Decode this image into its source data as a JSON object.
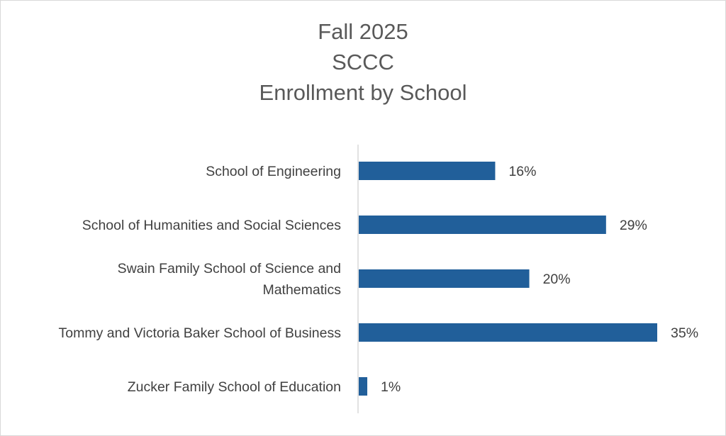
{
  "chart_data": {
    "type": "bar",
    "orientation": "horizontal",
    "title_lines": [
      "Fall 2025",
      "SCCC",
      "Enrollment by School"
    ],
    "categories": [
      [
        "School of Engineering"
      ],
      [
        "School of Humanities and Social Sciences"
      ],
      [
        "Swain Family School of Science and",
        "Mathematics"
      ],
      [
        "Tommy and Victoria Baker School of Business"
      ],
      [
        "Zucker Family School of Education"
      ]
    ],
    "values": [
      16,
      29,
      20,
      35,
      1
    ],
    "data_labels": [
      "16%",
      "29%",
      "20%",
      "35%",
      "1%"
    ],
    "unit": "%",
    "xlim": [
      0,
      35
    ],
    "grid": false,
    "legend": "none",
    "bar_color": "#215F9A"
  }
}
